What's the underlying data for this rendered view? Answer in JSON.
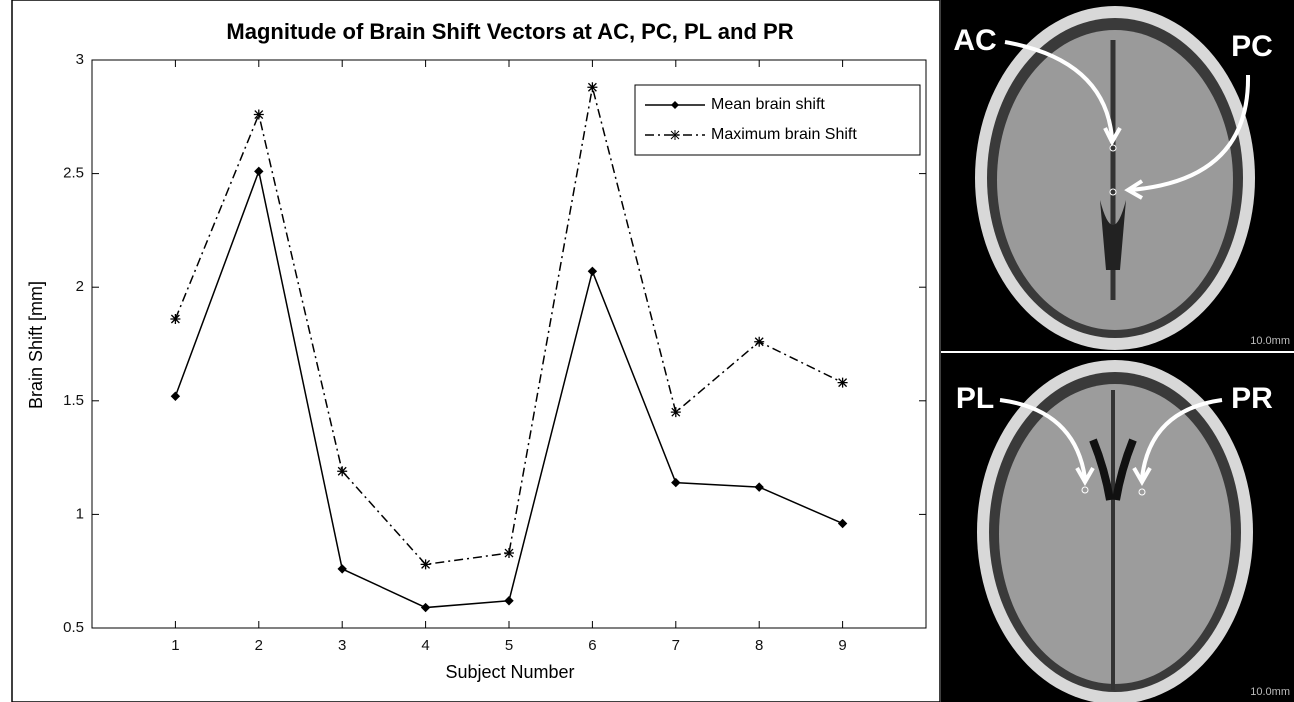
{
  "chart_data": {
    "type": "line",
    "title": "Magnitude of Brain Shift Vectors at AC, PC, PL and PR",
    "x_label": "Subject Number",
    "y_label": "Brain Shift [mm]",
    "x": [
      1,
      2,
      3,
      4,
      5,
      6,
      7,
      8,
      9
    ],
    "series": [
      {
        "name": "Mean brain shift",
        "color": "#000000",
        "dash": "solid",
        "marker": "diamond",
        "values": [
          1.52,
          2.51,
          0.76,
          0.59,
          0.62,
          2.07,
          1.14,
          1.12,
          0.96
        ]
      },
      {
        "name": "Maximum brain Shift",
        "color": "#000000",
        "dash": "dashdot",
        "marker": "asterisk",
        "values": [
          1.86,
          2.76,
          1.19,
          0.78,
          0.83,
          2.88,
          1.45,
          1.76,
          1.58
        ]
      }
    ],
    "xlim": [
      0,
      10
    ],
    "xticks": [
      1,
      2,
      3,
      4,
      5,
      6,
      7,
      8,
      9
    ],
    "ylim": [
      0.5,
      3
    ],
    "yticks": [
      0.5,
      1,
      1.5,
      2,
      2.5,
      3
    ],
    "grid": false,
    "legend": "upper right"
  },
  "images": [
    {
      "labels": [
        "AC",
        "PC"
      ],
      "scale": "10.0mm"
    },
    {
      "labels": [
        "PL",
        "PR"
      ],
      "scale": "10.0mm"
    }
  ]
}
